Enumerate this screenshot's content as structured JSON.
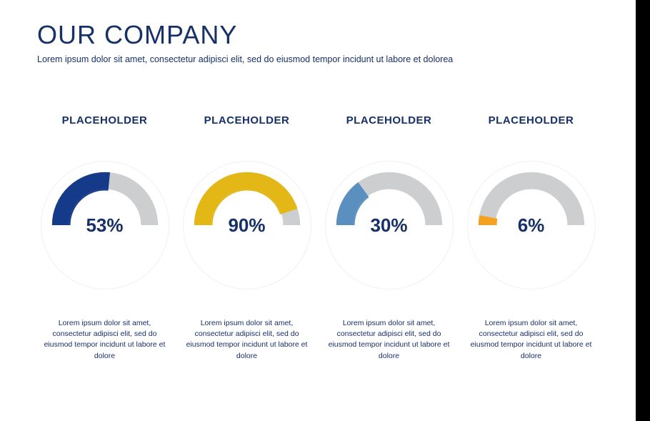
{
  "page": {
    "title": "OUR COMPANY",
    "subtitle": "Lorem ipsum dolor sit amet, consectetur adipisci elit, sed do eiusmod tempor incidunt ut labore et dolorea",
    "title_color": "#163068",
    "background_color": "#ffffff"
  },
  "gauge_style": {
    "type": "semi-donut",
    "start_angle_deg": 180,
    "sweep_deg": 180,
    "outer_radius": 75,
    "ring_thickness": 24,
    "inner_accent_radius": 50,
    "inner_accent_thickness": 2,
    "track_color": "#cdced0",
    "container_border_color": "#f0f0f0",
    "value_fontsize": 26,
    "value_fontweight": 700,
    "value_color": "#163068",
    "label_fontsize": 15,
    "label_color": "#163068",
    "desc_fontsize": 10.5,
    "desc_color": "#163068"
  },
  "cards": [
    {
      "label": "PLACEHOLDER",
      "value": 53,
      "value_text": "53%",
      "fill_color": "#163a8a",
      "desc": "Lorem ipsum dolor sit amet, consectetur adipisci elit, sed do eiusmod tempor incidunt ut labore et dolore"
    },
    {
      "label": "PLACEHOLDER",
      "value": 90,
      "value_text": "90%",
      "fill_color": "#e3b716",
      "desc": "Lorem ipsum dolor sit amet, consectetur adipisci elit, sed do eiusmod tempor incidunt ut labore et dolore"
    },
    {
      "label": "PLACEHOLDER",
      "value": 30,
      "value_text": "30%",
      "fill_color": "#5a8fc0",
      "desc": "Lorem ipsum dolor sit amet, consectetur adipisci elit, sed do eiusmod tempor incidunt ut labore et dolore"
    },
    {
      "label": "PLACEHOLDER",
      "value": 6,
      "value_text": "6%",
      "fill_color": "#f3aришь1f",
      "desc": "Lorem ipsum dolor sit amet, consectetur adipisci elit, sed do eiusmod tempor incidunt ut labore et dolore"
    }
  ]
}
